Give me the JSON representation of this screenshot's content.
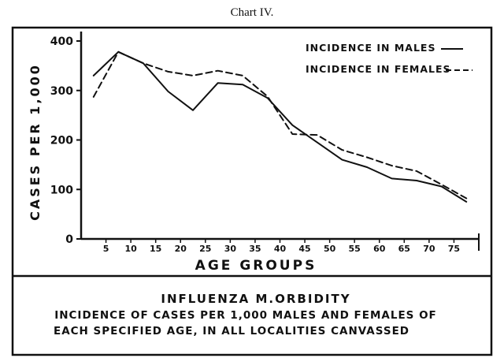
{
  "page": {
    "title": "Chart IV."
  },
  "chart_data": {
    "type": "line",
    "title": "INFLUENZA M.ORBIDITY",
    "subtitle_lines": [
      "INCIDENCE OF CASES PER 1,000 MALES AND FEMALES OF",
      "EACH SPECIFIED AGE, IN ALL LOCALITIES CANVASSED"
    ],
    "xlabel": "AGE GROUPS",
    "ylabel": "CASES PER 1,000",
    "xlim": [
      0,
      80
    ],
    "ylim": [
      0,
      400
    ],
    "x_ticks": [
      5,
      10,
      15,
      20,
      25,
      30,
      35,
      40,
      45,
      50,
      55,
      60,
      65,
      70,
      75
    ],
    "y_ticks": [
      0,
      100,
      200,
      300,
      400
    ],
    "legend_position": "top-right",
    "grid": false,
    "series": [
      {
        "name": "INCIDENCE IN MALES",
        "style": "solid",
        "points": [
          [
            2.5,
            330
          ],
          [
            7.5,
            378
          ],
          [
            12.5,
            355
          ],
          [
            17.5,
            298
          ],
          [
            22.5,
            260
          ],
          [
            27.5,
            315
          ],
          [
            32.5,
            312
          ],
          [
            37.5,
            285
          ],
          [
            42.5,
            230
          ],
          [
            47.5,
            195
          ],
          [
            52.5,
            160
          ],
          [
            57.5,
            145
          ],
          [
            62.5,
            122
          ],
          [
            67.5,
            118
          ],
          [
            72.5,
            106
          ],
          [
            77.5,
            75
          ]
        ]
      },
      {
        "name": "INCIDENCE IN FEMALES",
        "style": "dashed",
        "points": [
          [
            2.5,
            287
          ],
          [
            7.5,
            378
          ],
          [
            12.5,
            355
          ],
          [
            17.5,
            338
          ],
          [
            22.5,
            330
          ],
          [
            27.5,
            340
          ],
          [
            32.5,
            330
          ],
          [
            37.5,
            288
          ],
          [
            42.5,
            212
          ],
          [
            47.5,
            210
          ],
          [
            52.5,
            180
          ],
          [
            57.5,
            165
          ],
          [
            62.5,
            148
          ],
          [
            67.5,
            137
          ],
          [
            72.5,
            110
          ],
          [
            77.5,
            82
          ]
        ]
      }
    ]
  }
}
